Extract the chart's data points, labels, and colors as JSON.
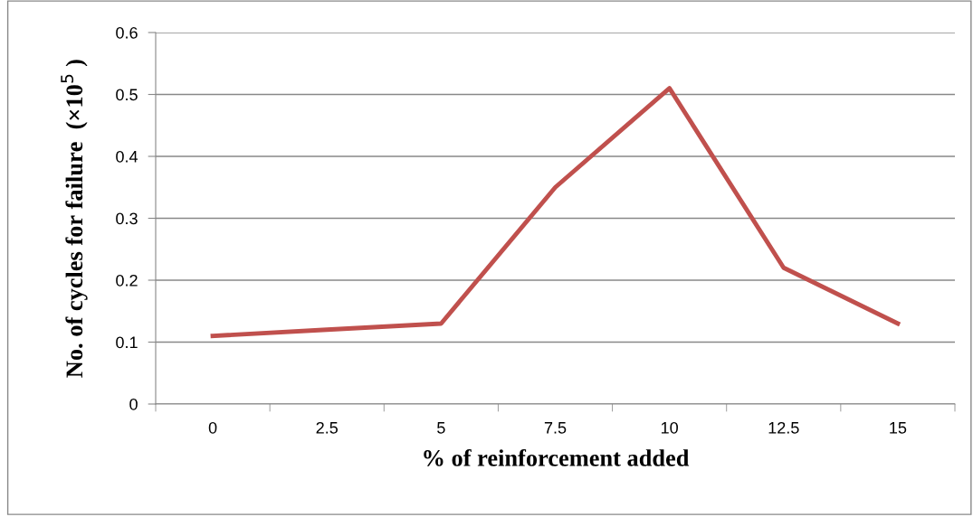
{
  "chart_data": {
    "type": "line",
    "xlabel": "% of reinforcement added",
    "ylabel": "No. of cycles for failure  (×10$^{5}$ )",
    "categories": [
      "0",
      "2.5",
      "5",
      "7.5",
      "10",
      "12.5",
      "15"
    ],
    "series": [
      {
        "color": "#c0504d",
        "values": [
          0.11,
          0.12,
          0.13,
          0.35,
          0.51,
          0.22,
          0.13
        ]
      }
    ],
    "ylim": [
      0,
      0.6
    ],
    "yticks": [
      0,
      0.1,
      0.2,
      0.3,
      0.4,
      0.5,
      0.6
    ],
    "grid": "y",
    "legend": false,
    "marker": "none",
    "line_style": "solid"
  }
}
